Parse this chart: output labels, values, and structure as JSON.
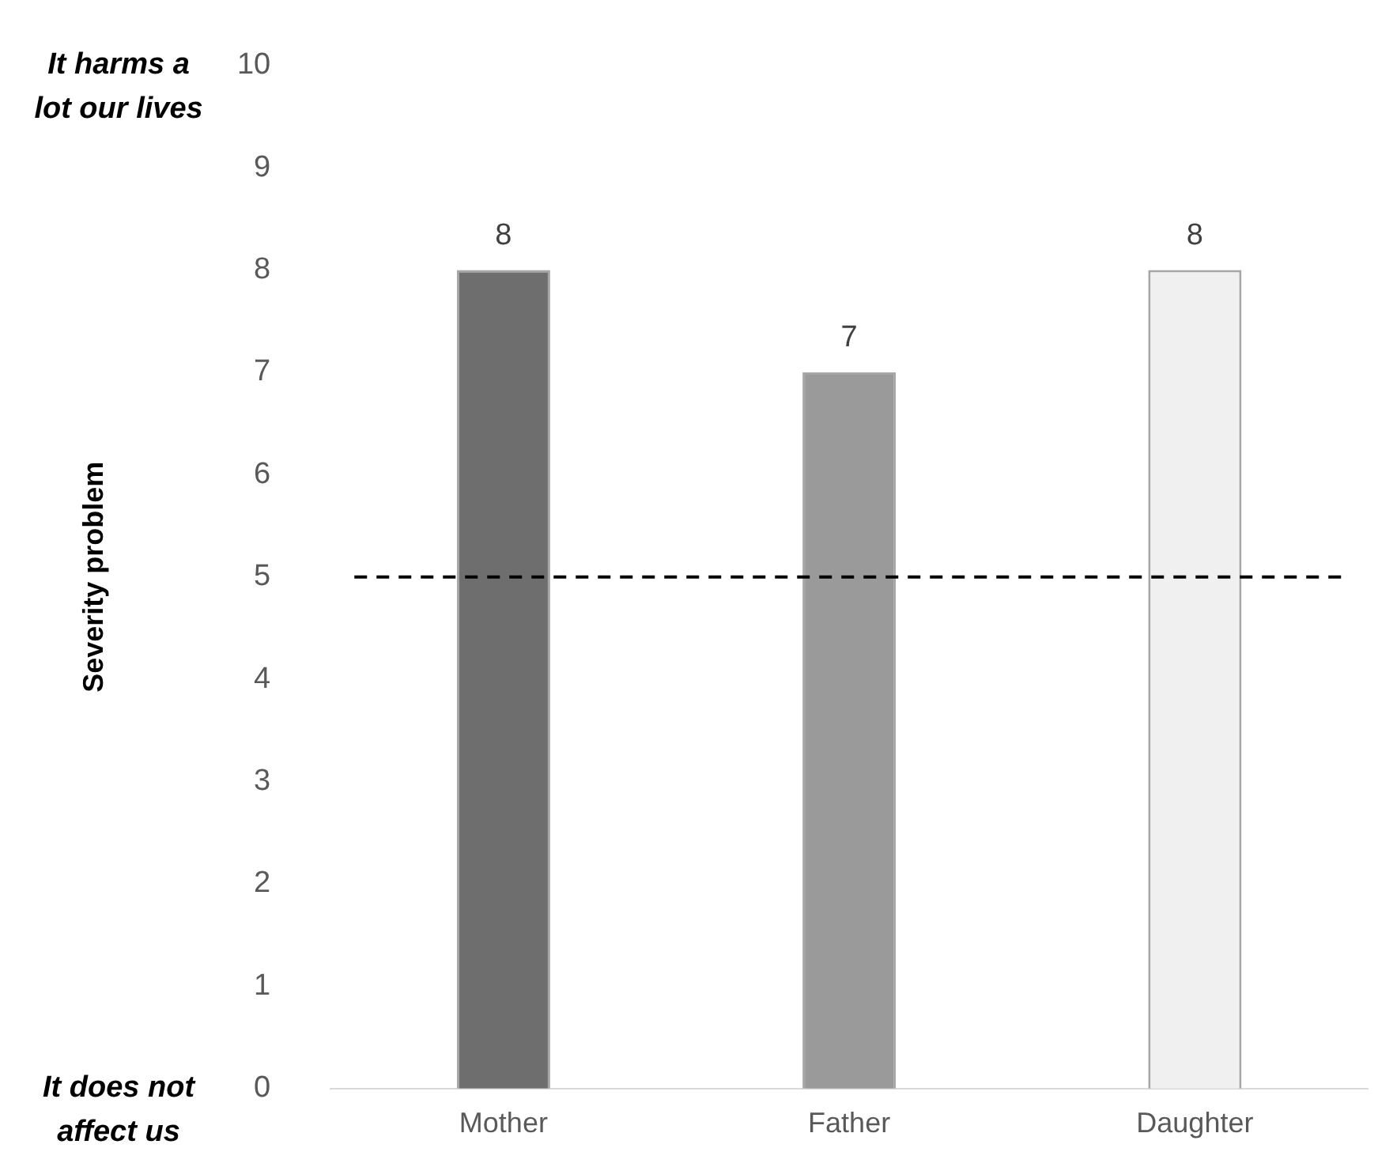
{
  "chart_data": {
    "type": "bar",
    "ylabel": "Severity problem",
    "categories": [
      "Mother",
      "Father",
      "Daughter"
    ],
    "values": [
      8,
      7,
      8
    ],
    "colors": [
      "#6e6e6e",
      "#9a9a9a",
      "#f0f0f0"
    ],
    "ylim": [
      0,
      10
    ],
    "yticks": [
      0,
      1,
      2,
      3,
      4,
      5,
      6,
      7,
      8,
      9,
      10
    ],
    "data_labels": true,
    "ref_lines": [
      {
        "axis": "y",
        "value": 5,
        "color": "#000000",
        "line_style": "dashed"
      }
    ],
    "annotations": [
      "It harms a lot our lives",
      "It does not affect us"
    ]
  }
}
